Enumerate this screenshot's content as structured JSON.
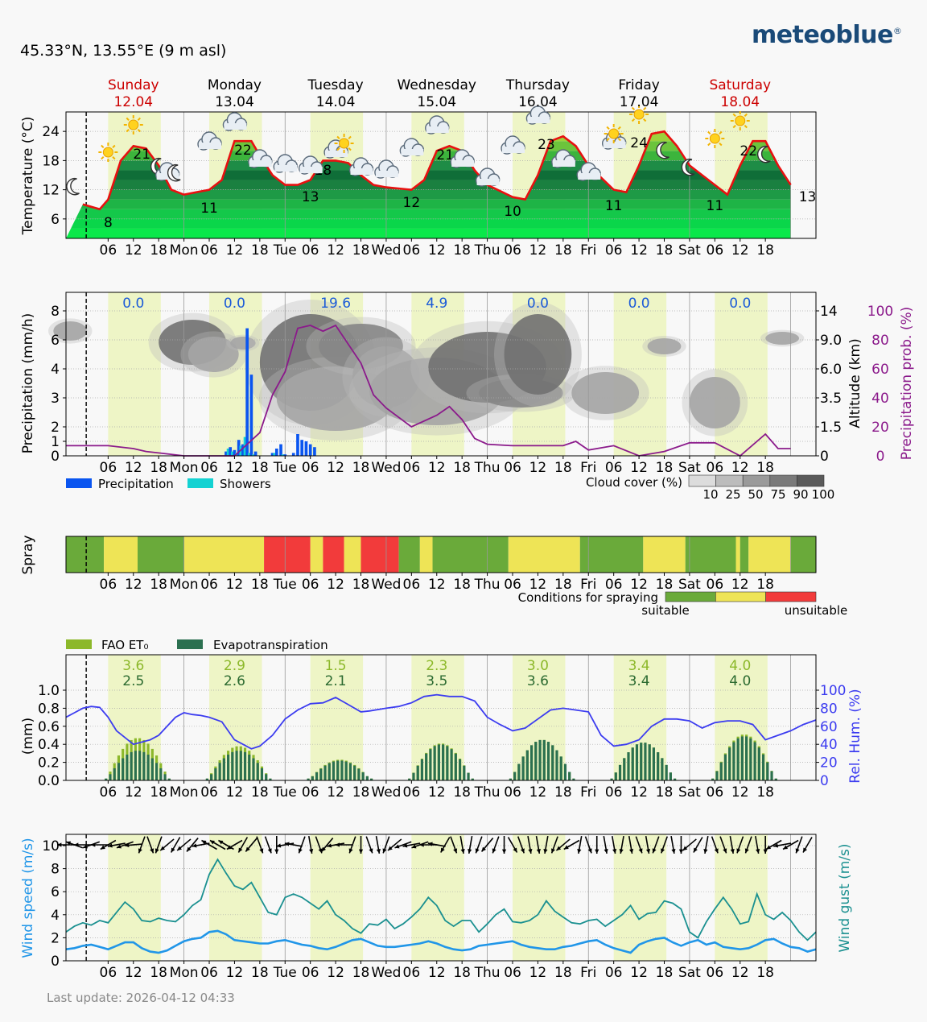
{
  "header": {
    "location": "45.33°N, 13.55°E (9 m asl)",
    "brand": "meteoblue",
    "brand_mark": "®",
    "brand_color": "#1a4a78"
  },
  "footer": {
    "last_update": "Last update: 2026-04-12 04:33"
  },
  "colors": {
    "daylight": "#eef5c6",
    "weekend_red": "#cc0000",
    "precip": "#0a55f0",
    "showers": "#14d2d2",
    "precip_prob": "#8b1a8b",
    "humidity": "#3c3cf0",
    "wind": "#2196e8",
    "gust": "#1a9090",
    "spray_suitable": "#6aaa3a",
    "spray_moderate": "#eee456",
    "spray_unsuitable": "#f23b3b",
    "fao": "#8cb82a",
    "evapo": "#2b7050"
  },
  "days": [
    {
      "name": "Sunday",
      "date": "12.04",
      "weekend": true
    },
    {
      "name": "Monday",
      "date": "13.04",
      "weekend": false
    },
    {
      "name": "Tuesday",
      "date": "14.04",
      "weekend": false
    },
    {
      "name": "Wednesday",
      "date": "15.04",
      "weekend": false
    },
    {
      "name": "Thursday",
      "date": "16.04",
      "weekend": false
    },
    {
      "name": "Friday",
      "date": "17.04",
      "weekend": false
    },
    {
      "name": "Saturday",
      "date": "18.04",
      "weekend": true
    }
  ],
  "x_ticks": [
    "06",
    "12",
    "18",
    "Mon",
    "06",
    "12",
    "18",
    "Tue",
    "06",
    "12",
    "18",
    "Wed",
    "06",
    "12",
    "18",
    "Thu",
    "06",
    "12",
    "18",
    "Fri",
    "06",
    "12",
    "18",
    "Sat",
    "06",
    "12",
    "18"
  ],
  "chart_data": [
    {
      "type": "line",
      "ylabel": "Temperature (°C)",
      "yticks": [
        6,
        12,
        18,
        24
      ],
      "ylim": [
        2,
        28
      ],
      "x_hours": [
        0,
        4,
        6,
        9,
        12,
        15,
        18,
        21,
        24,
        30,
        33,
        36,
        40,
        42,
        45,
        48,
        51,
        54,
        57,
        60,
        63,
        66,
        69,
        72,
        78,
        81,
        84,
        87,
        90,
        93,
        96,
        102,
        105,
        108,
        111,
        114,
        117,
        120,
        126,
        129,
        132,
        135,
        138,
        141,
        144,
        150,
        153,
        156,
        159,
        162,
        165,
        168
      ],
      "temperature": [
        9,
        8,
        10,
        18,
        21,
        20.5,
        17,
        12,
        11,
        12,
        14,
        22,
        22,
        19,
        15,
        13,
        13,
        14,
        18,
        18,
        17.5,
        15,
        13,
        12.5,
        12,
        14,
        20,
        21,
        20,
        16,
        13,
        10.5,
        10,
        15,
        22,
        23,
        21,
        17,
        12,
        11.5,
        17,
        23.5,
        24,
        21,
        17,
        13,
        11,
        17,
        22,
        22,
        17,
        13
      ],
      "max_labels": [
        {
          "day": "Sunday",
          "max": "21",
          "min": "8"
        },
        {
          "day": "Monday",
          "max": "22",
          "min": "11"
        },
        {
          "day": "Tuesday",
          "max": "18",
          "min": "13"
        },
        {
          "day": "Wednesday",
          "max": "21",
          "min": "12"
        },
        {
          "day": "Thursday",
          "max": "23",
          "min": "10"
        },
        {
          "day": "Friday",
          "max": "24",
          "min": "11"
        },
        {
          "day": "Saturday",
          "max": "22",
          "min": "11"
        },
        {
          "day": "Sunday next",
          "max": "",
          "min": "13"
        }
      ]
    },
    {
      "type": "bar",
      "ylabel": "Precipitation (mm/h)",
      "y2label": "Altitude (km)",
      "y3label": "Precipitation prob. (%)",
      "yticks": [
        0,
        1,
        2,
        3,
        4,
        6,
        8
      ],
      "altitude_ticks": [
        "0",
        "1.5",
        "3.5",
        "6.0",
        "9.0",
        "14"
      ],
      "prob_ticks": [
        "0",
        "20",
        "40",
        "60",
        "80",
        "100"
      ],
      "daily_totals": [
        "0.0",
        "0.0",
        "19.6",
        "4.9",
        "0.0",
        "0.0",
        "0.0"
      ],
      "precip_hours": [
        34,
        35,
        36,
        37,
        38,
        39,
        40,
        41,
        42,
        43,
        44,
        45,
        46,
        47,
        48,
        49,
        50,
        51,
        52,
        53,
        54,
        55,
        56,
        57,
        58,
        59,
        60,
        61,
        62,
        63,
        64
      ],
      "precipitation": [
        0.3,
        0.6,
        0.4,
        1.1,
        0.8,
        6.8,
        3.8,
        0.3,
        0,
        0,
        0,
        0.2,
        0.5,
        0.8,
        0.1,
        0,
        0.2,
        1.5,
        1.1,
        1.0,
        0.8,
        0.6,
        0,
        0,
        0,
        0,
        0,
        0,
        0,
        0,
        0
      ],
      "showers": [
        0.5,
        0.3,
        0.2,
        0.7,
        1.3,
        0.2,
        0.1,
        0,
        0,
        0,
        0,
        0.2,
        0,
        0.1,
        0,
        0,
        0,
        0,
        0,
        0,
        0,
        0,
        0,
        0,
        0,
        0,
        0,
        0,
        0,
        0,
        0
      ],
      "prob_hours": [
        -4,
        0,
        6,
        12,
        15,
        18,
        24,
        27,
        30,
        36,
        42,
        45,
        48,
        51,
        54,
        57,
        60,
        66,
        69,
        72,
        78,
        84,
        87,
        90,
        93,
        96,
        102,
        108,
        114,
        117,
        120,
        126,
        132,
        138,
        144,
        150,
        156,
        162,
        165,
        168
      ],
      "precip_prob": [
        7,
        7,
        7,
        5,
        3,
        2,
        0,
        0,
        0,
        0,
        16,
        42,
        58,
        88,
        90,
        86,
        90,
        64,
        42,
        33,
        20,
        28,
        34,
        25,
        12,
        8,
        7,
        7,
        7,
        10,
        4,
        7,
        0,
        3,
        9,
        9,
        0,
        15,
        5,
        5
      ],
      "legend": {
        "precipitation": "Precipitation",
        "showers": "Showers",
        "cloud_cover": "Cloud cover (%)",
        "cloud_levels": [
          "10",
          "25",
          "50",
          "75",
          "90",
          "100"
        ]
      }
    },
    {
      "type": "table",
      "ylabel": "Spray",
      "segments": [
        {
          "from": -4,
          "to": 5,
          "level": "suitable"
        },
        {
          "from": 5,
          "to": 13,
          "level": "moderate"
        },
        {
          "from": 13,
          "to": 24,
          "level": "suitable"
        },
        {
          "from": 24,
          "to": 43,
          "level": "moderate"
        },
        {
          "from": 43,
          "to": 54,
          "level": "unsuitable"
        },
        {
          "from": 54,
          "to": 57,
          "level": "moderate"
        },
        {
          "from": 57,
          "to": 62,
          "level": "unsuitable"
        },
        {
          "from": 62,
          "to": 66,
          "level": "moderate"
        },
        {
          "from": 66,
          "to": 75,
          "level": "unsuitable"
        },
        {
          "from": 75,
          "to": 80,
          "level": "suitable"
        },
        {
          "from": 80,
          "to": 83,
          "level": "moderate"
        },
        {
          "from": 83,
          "to": 101,
          "level": "suitable"
        },
        {
          "from": 101,
          "to": 118,
          "level": "moderate"
        },
        {
          "from": 118,
          "to": 133,
          "level": "suitable"
        },
        {
          "from": 133,
          "to": 143,
          "level": "moderate"
        },
        {
          "from": 143,
          "to": 155,
          "level": "suitable"
        },
        {
          "from": 155,
          "to": 156,
          "level": "moderate"
        },
        {
          "from": 156,
          "to": 158,
          "level": "suitable"
        },
        {
          "from": 158,
          "to": 168,
          "level": "moderate"
        },
        {
          "from": 168,
          "to": 174,
          "level": "suitable"
        }
      ],
      "legend": {
        "title": "Conditions for spraying",
        "low": "suitable",
        "high": "unsuitable"
      }
    },
    {
      "type": "bar",
      "ylabel": "(mm)",
      "y2label": "Rel. Hum. (%)",
      "yticks": [
        "0.0",
        "0.2",
        "0.4",
        "0.6",
        "0.8",
        "1.0"
      ],
      "hum_ticks": [
        "0",
        "20",
        "40",
        "60",
        "80",
        "100"
      ],
      "legend": {
        "fao": "FAO ET₀",
        "evapo": "Evapotranspiration"
      },
      "daily_fao": [
        "3.6",
        "2.9",
        "1.5",
        "2.3",
        "3.0",
        "3.4",
        "4.0"
      ],
      "daily_evapo": [
        "2.5",
        "2.6",
        "2.1",
        "3.5",
        "3.6",
        "3.4",
        "4.0"
      ],
      "day_peaks_fao": [
        0.47,
        0.38,
        0.23,
        0.41,
        0.45,
        0.42,
        0.51
      ],
      "day_peaks_evapo": [
        0.33,
        0.33,
        0.22,
        0.4,
        0.45,
        0.42,
        0.49
      ],
      "hum_hours": [
        -4,
        -2,
        0,
        2,
        4,
        6,
        8,
        12,
        16,
        18,
        20,
        22,
        24,
        26,
        28,
        30,
        33,
        36,
        40,
        42,
        45,
        48,
        51,
        54,
        57,
        60,
        63,
        66,
        68,
        72,
        75,
        78,
        81,
        84,
        87,
        90,
        93,
        96,
        99,
        102,
        105,
        108,
        111,
        114,
        117,
        120,
        123,
        126,
        129,
        132,
        135,
        138,
        141,
        144,
        147,
        150,
        153,
        156,
        159,
        162,
        165,
        168,
        171,
        174
      ],
      "humidity": [
        70,
        75,
        80,
        82,
        81,
        70,
        55,
        40,
        45,
        50,
        60,
        70,
        75,
        73,
        72,
        70,
        65,
        45,
        35,
        38,
        50,
        68,
        78,
        85,
        86,
        92,
        84,
        76,
        77,
        80,
        82,
        86,
        93,
        95,
        93,
        93,
        88,
        70,
        62,
        55,
        58,
        68,
        78,
        80,
        78,
        76,
        50,
        38,
        40,
        45,
        60,
        68,
        68,
        66,
        58,
        64,
        66,
        66,
        62,
        45,
        50,
        55,
        62,
        67
      ]
    },
    {
      "type": "line",
      "ylabel": "Wind speed (m/s)",
      "y2label": "Wind gust (m/s)",
      "yticks": [
        0,
        2,
        4,
        6,
        8,
        10
      ],
      "gust_hours": [
        -4,
        -2,
        0,
        2,
        4,
        6,
        8,
        10,
        12,
        14,
        16,
        18,
        20,
        22,
        24,
        26,
        28,
        30,
        32,
        34,
        36,
        38,
        40,
        42,
        44,
        46,
        48,
        50,
        52,
        54,
        56,
        58,
        60,
        62,
        64,
        66,
        68,
        70,
        72,
        74,
        76,
        78,
        80,
        82,
        84,
        86,
        88,
        90,
        92,
        94,
        96,
        98,
        100,
        102,
        104,
        106,
        108,
        110,
        112,
        114,
        116,
        118,
        120,
        122,
        124,
        126,
        128,
        130,
        132,
        134,
        136,
        138,
        140,
        142,
        144,
        146,
        148,
        150,
        152,
        154,
        156,
        158,
        160,
        162,
        164,
        166,
        168,
        170,
        172,
        174
      ],
      "gust": [
        2.5,
        3.0,
        3.3,
        3.1,
        3.5,
        3.3,
        4.2,
        5.1,
        4.5,
        3.5,
        3.4,
        3.7,
        3.5,
        3.4,
        4.0,
        4.8,
        5.3,
        7.5,
        8.8,
        7.6,
        6.5,
        6.2,
        6.8,
        5.5,
        4.2,
        4.0,
        5.5,
        5.8,
        5.5,
        5.0,
        4.5,
        5.2,
        4.0,
        3.5,
        2.8,
        2.4,
        3.2,
        3.1,
        3.6,
        2.8,
        3.2,
        3.8,
        4.5,
        5.5,
        4.8,
        3.5,
        3.0,
        3.5,
        3.5,
        2.5,
        3.2,
        4.0,
        4.5,
        3.4,
        3.3,
        3.5,
        4.0,
        5.2,
        4.3,
        3.8,
        3.3,
        3.2,
        3.5,
        3.6,
        3.0,
        3.5,
        4.0,
        4.8,
        3.6,
        4.1,
        4.2,
        5.2,
        5.0,
        4.5,
        2.5,
        2.0,
        3.4,
        4.5,
        5.5,
        4.5,
        3.2,
        3.4,
        5.8,
        4.0,
        3.6,
        4.2,
        3.5,
        2.5,
        1.8,
        2.5
      ],
      "wind": [
        1.0,
        1.1,
        1.3,
        1.4,
        1.2,
        1.0,
        1.3,
        1.6,
        1.6,
        1.1,
        0.8,
        0.7,
        0.9,
        1.3,
        1.7,
        1.9,
        2.0,
        2.5,
        2.6,
        2.3,
        1.8,
        1.7,
        1.6,
        1.5,
        1.5,
        1.7,
        1.8,
        1.6,
        1.4,
        1.3,
        1.1,
        1.0,
        1.2,
        1.5,
        1.8,
        1.9,
        1.6,
        1.3,
        1.2,
        1.2,
        1.3,
        1.4,
        1.5,
        1.7,
        1.5,
        1.2,
        1.0,
        0.9,
        1.0,
        1.3,
        1.4,
        1.5,
        1.6,
        1.7,
        1.4,
        1.2,
        1.1,
        1.0,
        1.0,
        1.2,
        1.3,
        1.5,
        1.7,
        1.8,
        1.4,
        1.1,
        0.9,
        0.7,
        1.4,
        1.7,
        1.9,
        2.0,
        1.6,
        1.3,
        1.6,
        1.8,
        1.4,
        1.6,
        1.2,
        1.1,
        1.0,
        1.1,
        1.4,
        1.8,
        1.9,
        1.5,
        1.2,
        1.1,
        0.8,
        1.0
      ],
      "wind_dir_hours": [
        -4,
        -2,
        0,
        2,
        4,
        6,
        8,
        10,
        12,
        14,
        16,
        18,
        20,
        22,
        24,
        26,
        28,
        30,
        32,
        34,
        36,
        38,
        40,
        42,
        44,
        46,
        48,
        50,
        52,
        54,
        56,
        58,
        60,
        62,
        64,
        66,
        68,
        70,
        72,
        74,
        76,
        78,
        80,
        82,
        84,
        86,
        88,
        90,
        92,
        94,
        96,
        98,
        100,
        102,
        104,
        106,
        108,
        110,
        112,
        114,
        116,
        118,
        120,
        122,
        124,
        126,
        128,
        130,
        132,
        134,
        136,
        138,
        140,
        142,
        144,
        146,
        148,
        150,
        152,
        154,
        156,
        158,
        160,
        162,
        164,
        166,
        168,
        170,
        172
      ],
      "wind_dir": [
        270,
        290,
        270,
        250,
        270,
        240,
        260,
        250,
        265,
        200,
        160,
        200,
        230,
        210,
        230,
        220,
        260,
        300,
        300,
        300,
        240,
        210,
        220,
        160,
        160,
        180,
        260,
        280,
        200,
        170,
        160,
        220,
        260,
        270,
        200,
        180,
        160,
        170,
        200,
        230,
        250,
        260,
        250,
        270,
        280,
        210,
        160,
        170,
        190,
        200,
        220,
        200,
        180,
        150,
        160,
        170,
        170,
        190,
        200,
        230,
        240,
        190,
        160,
        180,
        170,
        170,
        190,
        170,
        160,
        170,
        200,
        200,
        170,
        180,
        230,
        210,
        190,
        160,
        160,
        170,
        200,
        200,
        170,
        180,
        240,
        260,
        240,
        200,
        210
      ]
    }
  ]
}
